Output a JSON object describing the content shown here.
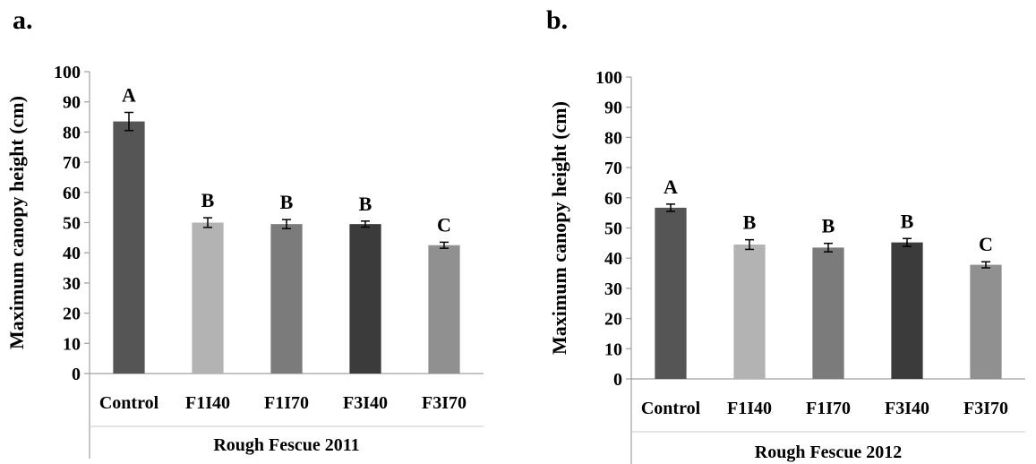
{
  "chart_data": [
    {
      "type": "bar",
      "panel_label": "a.",
      "ylabel": "Maximum canopy height (cm)",
      "xlabel": "Rough Fescue 2011",
      "categories": [
        "Control",
        "F1I40",
        "F1I70",
        "F3I40",
        "F3I70"
      ],
      "values": [
        83.5,
        50.0,
        49.5,
        49.5,
        42.5
      ],
      "errors": [
        3.0,
        1.6,
        1.5,
        1.0,
        1.0
      ],
      "letters": [
        "A",
        "B",
        "B",
        "B",
        "C"
      ],
      "ylim": [
        0,
        100
      ],
      "yticks": [
        0,
        10,
        20,
        30,
        40,
        50,
        60,
        70,
        80,
        90,
        100
      ],
      "grid": false,
      "bar_colors": [
        "#555555",
        "#b3b3b3",
        "#7b7b7b",
        "#3b3b3b",
        "#909090"
      ]
    },
    {
      "type": "bar",
      "panel_label": "b.",
      "ylabel": "Maximum canopy height (cm)",
      "xlabel": "Rough Fescue 2012",
      "categories": [
        "Control",
        "F1I40",
        "F1I70",
        "F3I40",
        "F3I70"
      ],
      "values": [
        56.7,
        44.5,
        43.5,
        45.2,
        37.8
      ],
      "errors": [
        1.2,
        1.6,
        1.4,
        1.3,
        1.0
      ],
      "letters": [
        "A",
        "B",
        "B",
        "B",
        "C"
      ],
      "ylim": [
        0,
        100
      ],
      "yticks": [
        0,
        10,
        20,
        30,
        40,
        50,
        60,
        70,
        80,
        90,
        100
      ],
      "grid": false,
      "bar_colors": [
        "#555555",
        "#b3b3b3",
        "#7b7b7b",
        "#3b3b3b",
        "#909090"
      ]
    }
  ]
}
